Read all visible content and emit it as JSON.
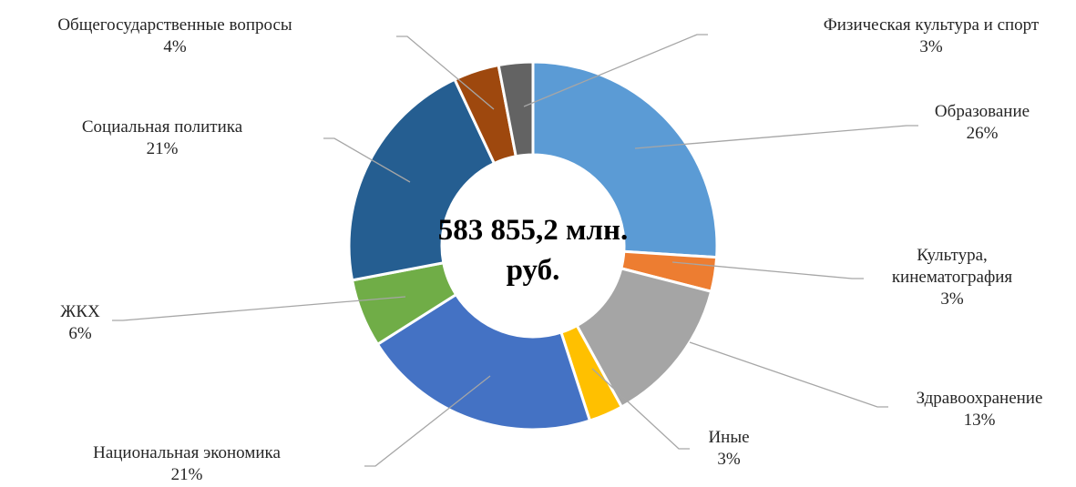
{
  "chart_data": {
    "type": "donut",
    "center_text": "583 855,2 млн. руб.",
    "categories": [
      "Образование",
      "Культура, кинематография",
      "Здравоохранение",
      "Иные",
      "Национальная экономика",
      "ЖКХ",
      "Социальная политика",
      "Общегосударственные вопросы",
      "Физическая культура и спорт"
    ],
    "values": [
      26,
      3,
      13,
      3,
      21,
      6,
      21,
      4,
      3
    ],
    "value_labels": [
      "26%",
      "3%",
      "13%",
      "3%",
      "21%",
      "6%",
      "21%",
      "4%",
      "3%"
    ],
    "colors": [
      "#5b9bd5",
      "#ed7d31",
      "#a5a5a5",
      "#ffc000",
      "#4472c4",
      "#70ad47",
      "#255e91",
      "#9e480e",
      "#636363"
    ]
  }
}
